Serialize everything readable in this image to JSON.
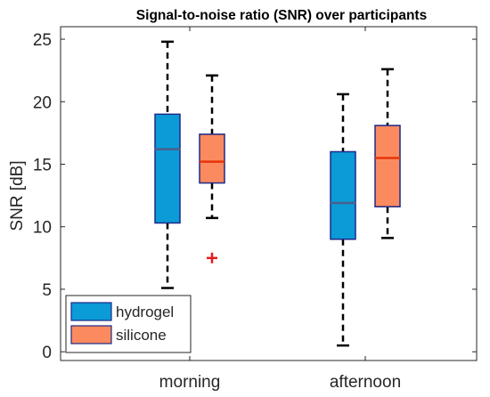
{
  "chart_data": {
    "type": "box",
    "title": "Signal-to-noise ratio (SNR) over participants",
    "xlabel": "",
    "ylabel": "SNR [dB]",
    "ylim": [
      -0.7,
      26
    ],
    "yticks": [
      0,
      5,
      10,
      15,
      20,
      25
    ],
    "grid": false,
    "legend_position": "bottom-left",
    "categories": [
      "morning",
      "afternoon"
    ],
    "series": [
      {
        "name": "hydrogel",
        "color": "#0b9bd6",
        "median_color": "#4a5f8a",
        "edge_color": "#1b2a8a",
        "boxes": [
          {
            "category": "morning",
            "whisker_low": 5.1,
            "q1": 10.3,
            "median": 16.2,
            "q3": 19.0,
            "whisker_high": 24.8,
            "outliers": []
          },
          {
            "category": "afternoon",
            "whisker_low": 0.5,
            "q1": 9.0,
            "median": 11.9,
            "q3": 16.0,
            "whisker_high": 20.6,
            "outliers": []
          }
        ]
      },
      {
        "name": "silicone",
        "color": "#fc8a5f",
        "median_color": "#e5340a",
        "edge_color": "#1b2a8a",
        "boxes": [
          {
            "category": "morning",
            "whisker_low": 10.7,
            "q1": 13.5,
            "median": 15.2,
            "q3": 17.4,
            "whisker_high": 22.1,
            "outliers": [
              7.5
            ]
          },
          {
            "category": "afternoon",
            "whisker_low": 9.1,
            "q1": 11.6,
            "median": 15.5,
            "q3": 18.1,
            "whisker_high": 22.6,
            "outliers": []
          }
        ]
      }
    ],
    "outlier_color": "#e51c1c"
  }
}
